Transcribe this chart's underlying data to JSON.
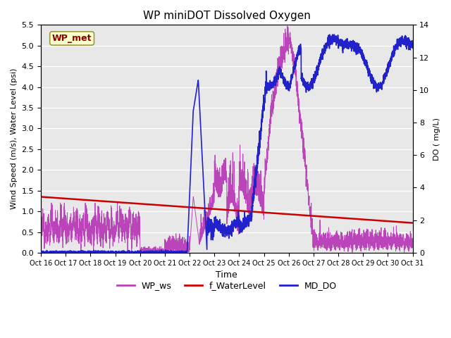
{
  "title": "WP miniDOT Dissolved Oxygen",
  "xlabel": "Time",
  "ylabel_left": "Wind Speed (m/s), Water Level (psi)",
  "ylabel_right": "DO ( mg/L)",
  "ylim_left": [
    0,
    5.5
  ],
  "ylim_right": [
    0,
    14
  ],
  "yticks_left": [
    0.0,
    0.5,
    1.0,
    1.5,
    2.0,
    2.5,
    3.0,
    3.5,
    4.0,
    4.5,
    5.0,
    5.5
  ],
  "yticks_right": [
    0,
    2,
    4,
    6,
    8,
    10,
    12,
    14
  ],
  "xtick_labels": [
    "Oct 16",
    "Oct 17",
    "Oct 18",
    "Oct 19",
    "Oct 20",
    "Oct 21",
    "Oct 22",
    "Oct 23",
    "Oct 24",
    "Oct 25",
    "Oct 26",
    "Oct 27",
    "Oct 28",
    "Oct 29",
    "Oct 30",
    "Oct 31"
  ],
  "bg_color": "#e8e8e8",
  "grid_color": "#ffffff",
  "wp_ws_color": "#bb44bb",
  "f_waterlevel_color": "#cc0000",
  "md_do_color": "#2222cc",
  "legend_entries": [
    "WP_ws",
    "f_WaterLevel",
    "MD_DO"
  ],
  "legend_colors": [
    "#bb44bb",
    "#cc0000",
    "#2222cc"
  ],
  "annotation_text": "WP_met",
  "annotation_bg": "#ffffcc",
  "annotation_border": "#999944",
  "annotation_text_color": "#880000"
}
